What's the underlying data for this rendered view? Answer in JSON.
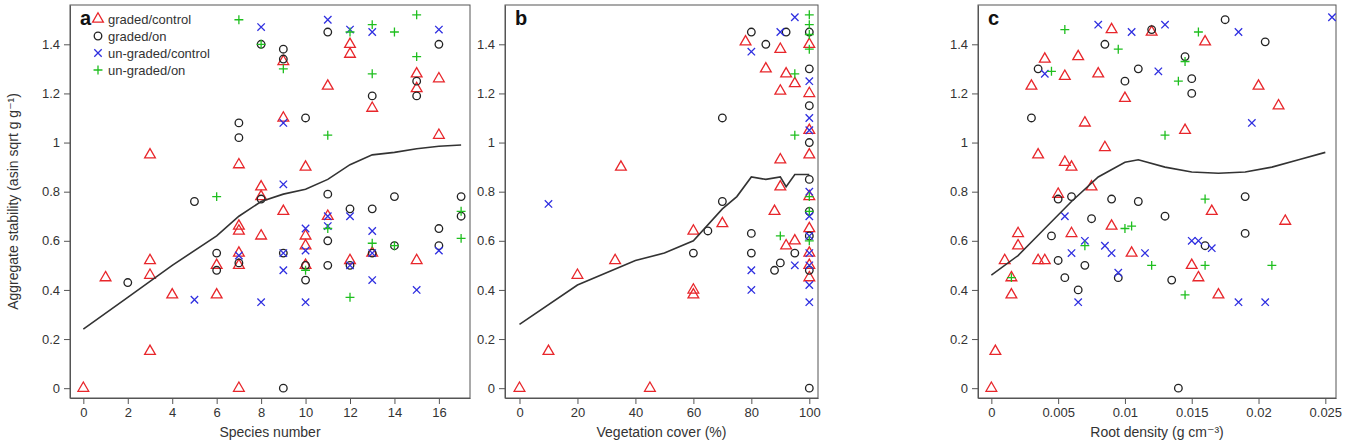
{
  "chart_data": [
    {
      "type": "scatter",
      "title": "a",
      "xlabel": "Species number",
      "ylabel": "Aggregate stability (asin sqrt g g⁻¹)",
      "xlim": [
        -0.6,
        17.4
      ],
      "ylim": [
        -0.04,
        1.56
      ],
      "xticks": [
        0,
        2,
        4,
        6,
        8,
        10,
        12,
        14,
        16
      ],
      "yticks": [
        0,
        0.2,
        0.4,
        0.6,
        0.8,
        1,
        1.2,
        1.4
      ],
      "legend": "top-left",
      "series": [
        {
          "name": "graded/control",
          "color": "#e8262b",
          "marker": "triangle",
          "x": [
            0,
            1,
            3,
            3,
            3,
            3,
            4,
            6,
            6,
            7,
            7,
            7,
            7,
            7,
            7,
            8,
            8,
            8,
            9,
            9,
            9,
            10,
            10,
            10,
            10,
            11,
            11,
            12,
            12,
            12,
            13,
            13,
            15,
            15,
            15,
            16,
            16
          ],
          "values": [
            0,
            0.45,
            0.95,
            0.52,
            0.46,
            0.15,
            0.38,
            0.5,
            0.38,
            0,
            0.91,
            0.64,
            0.66,
            0.55,
            0.5,
            0.82,
            0.78,
            0.62,
            1.33,
            1.1,
            0.72,
            0.9,
            0.62,
            0.58,
            0.5,
            1.23,
            0.7,
            1.4,
            1.36,
            0.52,
            1.14,
            0.55,
            1.28,
            1.22,
            0.52,
            1.26,
            1.03
          ]
        },
        {
          "name": "graded/on",
          "color": "#222222",
          "marker": "circle",
          "x": [
            2,
            5,
            6,
            6,
            7,
            7,
            7,
            8,
            8,
            9,
            9,
            9,
            9,
            10,
            10,
            10,
            11,
            11,
            11,
            11,
            12,
            12,
            13,
            13,
            13,
            14,
            14,
            15,
            15,
            16,
            16,
            16,
            17,
            17
          ],
          "values": [
            0.43,
            0.76,
            0.55,
            0.48,
            1.08,
            1.02,
            0.51,
            1.4,
            0.77,
            1.38,
            1.34,
            0,
            0.55,
            1.1,
            0.5,
            0.44,
            1.45,
            0.79,
            0.6,
            0.5,
            0.73,
            0.5,
            1.19,
            0.73,
            0.55,
            0.78,
            0.58,
            1.25,
            1.19,
            1.4,
            0.65,
            0.58,
            0.78,
            0.7
          ]
        },
        {
          "name": "un-graded/control",
          "color": "#2f2fe0",
          "marker": "x",
          "x": [
            5,
            7,
            8,
            8,
            9,
            9,
            9,
            9,
            10,
            10,
            10,
            11,
            11,
            11,
            12,
            12,
            12,
            13,
            13,
            13,
            13,
            15,
            16,
            16
          ],
          "values": [
            0.36,
            0.54,
            1.47,
            0.35,
            1.08,
            0.83,
            0.55,
            0.48,
            0.35,
            0.56,
            0.65,
            1.5,
            0.7,
            0.66,
            1.46,
            0.7,
            0.5,
            1.45,
            0.64,
            0.55,
            0.44,
            0.4,
            1.46,
            0.56
          ]
        },
        {
          "name": "un-graded/on",
          "color": "#1fbf1f",
          "marker": "plus",
          "x": [
            6,
            7,
            8,
            9,
            10,
            11,
            11,
            12,
            12,
            13,
            13,
            13,
            14,
            14,
            15,
            15,
            17,
            17
          ],
          "values": [
            0.78,
            1.5,
            1.4,
            1.3,
            0.48,
            1.03,
            0.65,
            1.45,
            0.37,
            1.48,
            1.28,
            0.59,
            1.45,
            0.58,
            1.52,
            1.35,
            0.72,
            0.61
          ]
        },
        {
          "type": "line",
          "color": "#333333",
          "line_style": "solid",
          "x": [
            0,
            2,
            4,
            6,
            7,
            8,
            9,
            10,
            11,
            12,
            13,
            14,
            15,
            16,
            17
          ],
          "values": [
            0.24,
            0.37,
            0.5,
            0.62,
            0.7,
            0.76,
            0.79,
            0.81,
            0.85,
            0.91,
            0.95,
            0.96,
            0.975,
            0.985,
            0.99
          ]
        }
      ]
    },
    {
      "type": "scatter",
      "title": "b",
      "xlabel": "Vegetation cover (%)",
      "xlim": [
        -5,
        103
      ],
      "ylim": [
        -0.04,
        1.56
      ],
      "xticks": [
        0,
        20,
        40,
        60,
        80,
        100
      ],
      "yticks": [
        0,
        0.2,
        0.4,
        0.6,
        0.8,
        1,
        1.2,
        1.4
      ],
      "series": [
        {
          "color": "#e8262b",
          "marker": "triangle",
          "x": [
            0,
            10,
            20,
            33,
            35,
            45,
            60,
            60,
            60,
            70,
            78,
            85,
            88,
            90,
            90,
            90,
            90,
            92,
            92,
            95,
            95,
            100,
            100,
            100,
            100,
            100,
            100,
            100,
            100,
            100
          ],
          "values": [
            0,
            0.15,
            0.46,
            0.52,
            0.9,
            0,
            0.64,
            0.38,
            0.4,
            0.67,
            1.41,
            1.3,
            0.72,
            1.38,
            1.21,
            0.93,
            0.82,
            1.28,
            0.58,
            1.24,
            0.6,
            1.2,
            1.05,
            0.95,
            0.78,
            0.65,
            0.55,
            0.5,
            0.45,
            1.4
          ]
        },
        {
          "color": "#222222",
          "marker": "circle",
          "x": [
            60,
            65,
            70,
            70,
            80,
            80,
            80,
            85,
            88,
            90,
            92,
            95,
            100,
            100,
            100,
            100,
            100,
            100,
            100,
            100,
            100
          ],
          "values": [
            0.55,
            0.64,
            1.1,
            0.76,
            1.45,
            0.63,
            0.55,
            1.4,
            0.48,
            0.51,
            1.45,
            0.55,
            1.45,
            1.3,
            1.15,
            0.85,
            0.72,
            0.62,
            0.48,
            0,
            1.0
          ]
        },
        {
          "color": "#2f2fe0",
          "marker": "x",
          "x": [
            10,
            80,
            80,
            80,
            90,
            95,
            95,
            100,
            100,
            100,
            100,
            100,
            100,
            100,
            100,
            100,
            100
          ],
          "values": [
            0.75,
            1.37,
            0.48,
            0.4,
            1.45,
            1.51,
            0.5,
            1.1,
            1.05,
            0.8,
            0.7,
            0.62,
            0.55,
            0.5,
            0.42,
            0.35,
            1.25
          ]
        },
        {
          "color": "#1fbf1f",
          "marker": "plus",
          "x": [
            90,
            95,
            95,
            100,
            100,
            100,
            100,
            100,
            100,
            100
          ],
          "values": [
            0.62,
            1.03,
            1.28,
            1.52,
            1.48,
            1.44,
            1.38,
            0.78,
            0.72,
            0.6
          ]
        },
        {
          "type": "line",
          "color": "#333333",
          "line_style": "solid",
          "x": [
            0,
            20,
            40,
            50,
            60,
            70,
            75,
            80,
            85,
            90,
            92,
            95,
            100
          ],
          "values": [
            0.26,
            0.42,
            0.52,
            0.55,
            0.6,
            0.73,
            0.78,
            0.86,
            0.85,
            0.86,
            0.82,
            0.87,
            0.87
          ]
        }
      ]
    },
    {
      "type": "scatter",
      "title": "c",
      "xlabel": "Root density (g cm⁻³)",
      "xlim": [
        -0.001,
        0.0258
      ],
      "ylim": [
        -0.04,
        1.56
      ],
      "xticks": [
        0,
        0.005,
        0.01,
        0.015,
        0.02,
        0.025
      ],
      "yticks": [
        0,
        0.2,
        0.4,
        0.6,
        0.8,
        1,
        1.2,
        1.4
      ],
      "series": [
        {
          "color": "#e8262b",
          "marker": "triangle",
          "x": [
            0,
            0.0003,
            0.001,
            0.0015,
            0.0015,
            0.002,
            0.002,
            0.003,
            0.0035,
            0.0035,
            0.004,
            0.004,
            0.005,
            0.0055,
            0.0055,
            0.006,
            0.006,
            0.0065,
            0.007,
            0.0075,
            0.008,
            0.0085,
            0.009,
            0.009,
            0.01,
            0.0105,
            0.012,
            0.0145,
            0.015,
            0.0155,
            0.016,
            0.0165,
            0.017,
            0.02,
            0.0215,
            0.022
          ],
          "values": [
            0,
            0.15,
            0.52,
            0.45,
            0.38,
            0.63,
            0.58,
            1.23,
            0.95,
            0.52,
            1.34,
            0.52,
            0.79,
            1.27,
            0.92,
            0.9,
            0.63,
            1.35,
            1.08,
            0.82,
            1.28,
            0.98,
            1.46,
            0.66,
            1.18,
            0.55,
            1.45,
            1.05,
            0.5,
            0.45,
            1.41,
            0.72,
            0.38,
            1.23,
            1.15,
            0.68
          ]
        },
        {
          "color": "#222222",
          "marker": "circle",
          "x": [
            0.003,
            0.0035,
            0.0045,
            0.005,
            0.005,
            0.0055,
            0.006,
            0.0065,
            0.007,
            0.0075,
            0.0085,
            0.009,
            0.0095,
            0.01,
            0.011,
            0.011,
            0.012,
            0.013,
            0.0135,
            0.014,
            0.0145,
            0.015,
            0.015,
            0.016,
            0.0175,
            0.019,
            0.019,
            0.0205
          ],
          "values": [
            1.1,
            1.3,
            0.62,
            0.77,
            0.52,
            0.45,
            0.78,
            0.4,
            0.5,
            0.69,
            1.4,
            0.77,
            0.45,
            1.25,
            1.3,
            0.76,
            1.46,
            0.7,
            0.44,
            0,
            1.35,
            1.26,
            1.2,
            0.58,
            1.5,
            0.78,
            0.63,
            1.41
          ]
        },
        {
          "color": "#2f2fe0",
          "marker": "x",
          "x": [
            0.004,
            0.0055,
            0.006,
            0.0065,
            0.007,
            0.008,
            0.0085,
            0.009,
            0.0095,
            0.0105,
            0.0115,
            0.0125,
            0.013,
            0.015,
            0.0155,
            0.0165,
            0.0185,
            0.0185,
            0.0195,
            0.0205,
            0.0255
          ],
          "values": [
            1.28,
            0.7,
            0.55,
            0.35,
            0.6,
            1.48,
            0.58,
            0.55,
            0.47,
            1.45,
            0.55,
            1.29,
            1.48,
            0.6,
            0.6,
            0.57,
            1.45,
            0.35,
            1.08,
            0.35,
            1.51
          ]
        },
        {
          "color": "#1fbf1f",
          "marker": "plus",
          "x": [
            0.0015,
            0.0045,
            0.0055,
            0.007,
            0.0095,
            0.01,
            0.0105,
            0.012,
            0.013,
            0.014,
            0.0145,
            0.0145,
            0.0155,
            0.016,
            0.016,
            0.021
          ],
          "values": [
            0.45,
            1.29,
            1.46,
            0.58,
            1.38,
            0.65,
            0.66,
            0.5,
            1.03,
            1.25,
            0.38,
            1.33,
            1.45,
            0.77,
            0.5,
            0.5
          ]
        },
        {
          "type": "line",
          "color": "#333333",
          "line_style": "solid",
          "x": [
            0,
            0.002,
            0.004,
            0.006,
            0.008,
            0.01,
            0.011,
            0.013,
            0.015,
            0.017,
            0.019,
            0.021,
            0.023,
            0.025
          ],
          "values": [
            0.46,
            0.54,
            0.65,
            0.76,
            0.86,
            0.92,
            0.93,
            0.9,
            0.88,
            0.875,
            0.88,
            0.9,
            0.93,
            0.96
          ]
        }
      ]
    }
  ]
}
